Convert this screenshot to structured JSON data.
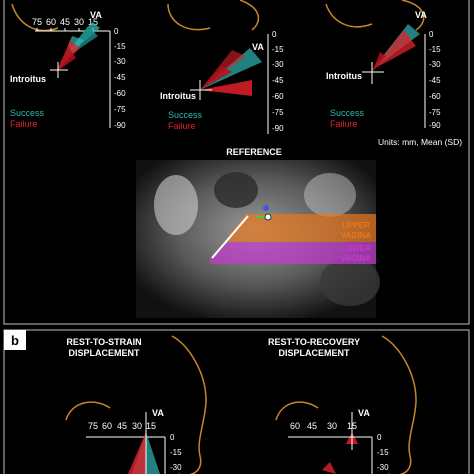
{
  "panel_a": {
    "top_axis_ticks": [
      "75",
      "60",
      "45",
      "30",
      "15"
    ],
    "right_axis_ticks": [
      "0",
      "-15",
      "-30",
      "-45",
      "-60",
      "-75",
      "-90"
    ],
    "va_label": "VA",
    "introitus_label": "Introitus",
    "legend_success": "Success",
    "legend_failure": "Failure",
    "units_text": "Units: mm, Mean (SD)",
    "reference_title": "REFERENCE",
    "upper_vagina_line1": "UPPER",
    "upper_vagina_line2": "VAGINA",
    "lower_vagina_line1": "LOWER",
    "lower_vagina_line2": "VAGINA"
  },
  "panel_b": {
    "letter": "b",
    "left_title_line1": "REST-TO-STRAIN",
    "left_title_line2": "DISPLACEMENT",
    "right_title_line1": "REST-TO-RECOVERY",
    "right_title_line2": "DISPLACEMENT",
    "left_top_ticks": [
      "75",
      "60",
      "45",
      "30",
      "15"
    ],
    "right_top_ticks": [
      "60",
      "45",
      "30",
      "15"
    ],
    "right_axis_ticks": [
      "0",
      "-15",
      "-30"
    ],
    "va_label": "VA"
  },
  "colors": {
    "success": "#2fb8b3",
    "failure": "#e0202a",
    "upper_vagina": "#e8771e",
    "lower_vagina": "#c43ad0",
    "anatomy_outline": "#c8862a",
    "frame": "#bfbfbf"
  }
}
